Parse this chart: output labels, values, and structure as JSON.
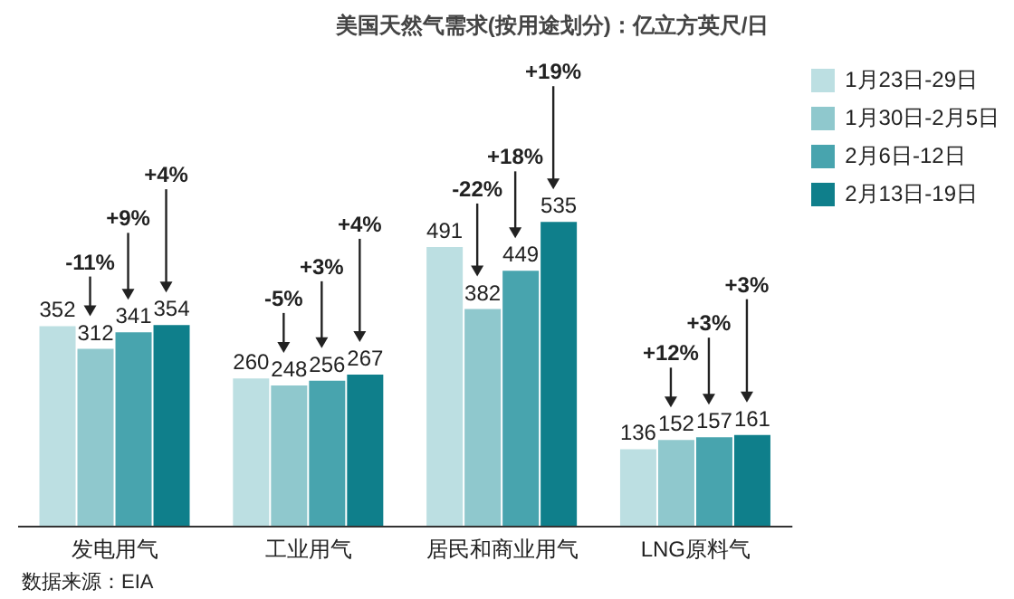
{
  "chart_data": {
    "type": "bar",
    "title": "美国天然气需求(按用途划分)：亿立方英尺/日",
    "categories": [
      "发电用气",
      "工业用气",
      "居民和商业用气",
      "LNG原料气"
    ],
    "series": [
      {
        "name": "1月23日-29日",
        "color": "#bcdfe2",
        "values": [
          352,
          260,
          491,
          136
        ]
      },
      {
        "name": "1月30日-2月5日",
        "color": "#8fc8cd",
        "values": [
          312,
          248,
          382,
          152
        ]
      },
      {
        "name": "2月6日-12日",
        "color": "#48a4ae",
        "values": [
          341,
          256,
          449,
          157
        ]
      },
      {
        "name": "2月13日-19日",
        "color": "#0f7f8b",
        "values": [
          354,
          267,
          535,
          161
        ]
      }
    ],
    "data_labels": true,
    "legend": "top right",
    "grid": false,
    "annotations": [
      "-11%",
      "+9%",
      "+4%",
      "-5%",
      "+3%",
      "+4%",
      "-22%",
      "+18%",
      "+19%",
      "+12%",
      "+3%",
      "+3%",
      "数据来源：EIA"
    ]
  }
}
